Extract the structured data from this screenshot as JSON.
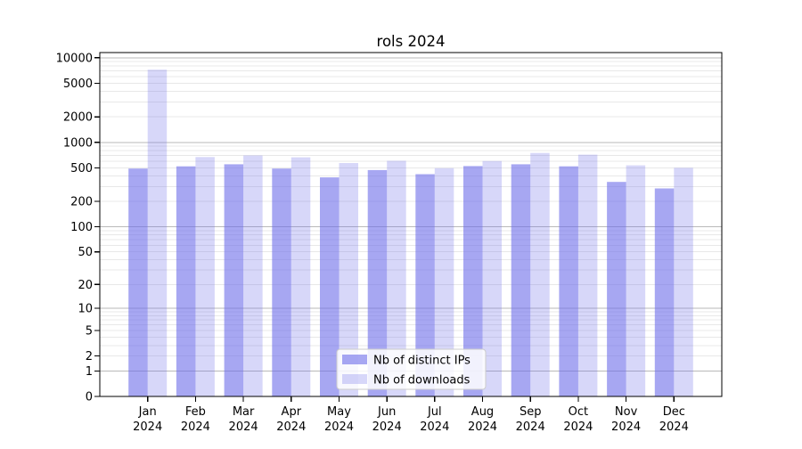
{
  "chart_data": {
    "type": "bar",
    "title": "rols 2024",
    "categories": [
      "Jan",
      "Feb",
      "Mar",
      "Apr",
      "May",
      "Jun",
      "Jul",
      "Aug",
      "Sep",
      "Oct",
      "Nov",
      "Dec"
    ],
    "x_tick_year": "2024",
    "series": [
      {
        "name": "Nb of distinct IPs",
        "fill_opacity": 0.6,
        "values": [
          490,
          520,
          550,
          490,
          385,
          470,
          420,
          525,
          550,
          520,
          340,
          285
        ]
      },
      {
        "name": "Nb of downloads",
        "fill_opacity": 0.27,
        "values": [
          7230,
          670,
          700,
          665,
          570,
          605,
          495,
          600,
          750,
          715,
          535,
          500
        ]
      }
    ],
    "y_scale": "log10(value+1)",
    "y_ticks": [
      0,
      1,
      2,
      5,
      10,
      20,
      50,
      100,
      200,
      500,
      1000,
      2000,
      5000,
      10000
    ],
    "y_major_gridlines": [
      1,
      10,
      100,
      1000,
      10000
    ],
    "ylim": [
      0,
      11500
    ],
    "grid": true,
    "legend": {
      "position": "bottom-center",
      "entries": [
        "Nb of distinct IPs",
        "Nb of downloads"
      ]
    },
    "colors": {
      "bar": "#6c6ce9",
      "major_grid": "#b9b9b9",
      "minor_grid": "#e8e8e8",
      "spine": "#000000",
      "text": "#000000",
      "legend_bg": "#ffffff",
      "legend_border": "#cccccc"
    }
  }
}
